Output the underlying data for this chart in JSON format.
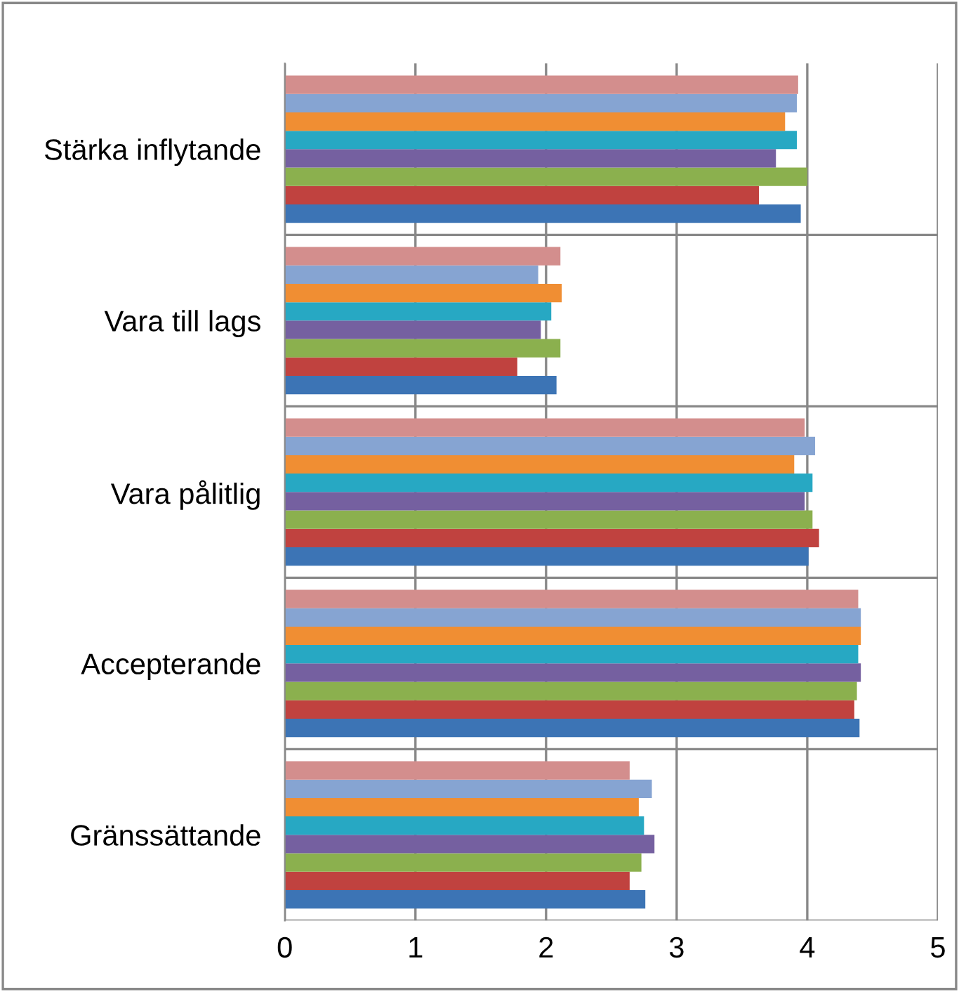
{
  "chart_data": {
    "type": "bar",
    "orientation": "horizontal",
    "categories": [
      "Stärka inflytande",
      "Vara till lags",
      "Vara pålitlig",
      "Accepterande",
      "Gränssättande"
    ],
    "series": [
      {
        "color": "#3c74b5",
        "values": [
          3.95,
          2.08,
          4.01,
          4.4,
          2.76
        ]
      },
      {
        "color": "#c0423f",
        "values": [
          3.63,
          1.78,
          4.09,
          4.36,
          2.64
        ]
      },
      {
        "color": "#8bb04e",
        "values": [
          4.0,
          2.11,
          4.04,
          4.38,
          2.73
        ]
      },
      {
        "color": "#7560a0",
        "values": [
          3.76,
          1.96,
          3.98,
          4.41,
          2.83
        ]
      },
      {
        "color": "#27a8c3",
        "values": [
          3.92,
          2.04,
          4.04,
          4.39,
          2.75
        ]
      },
      {
        "color": "#f08e33",
        "values": [
          3.83,
          2.12,
          3.9,
          4.41,
          2.71
        ]
      },
      {
        "color": "#86a4d2",
        "values": [
          3.92,
          1.94,
          4.06,
          4.41,
          2.81
        ]
      },
      {
        "color": "#d38e8d",
        "values": [
          3.93,
          2.11,
          3.98,
          4.39,
          2.64
        ]
      }
    ],
    "xlim": [
      0,
      5
    ],
    "xticks": [
      0,
      1,
      2,
      3,
      4,
      5
    ],
    "grid": true
  }
}
